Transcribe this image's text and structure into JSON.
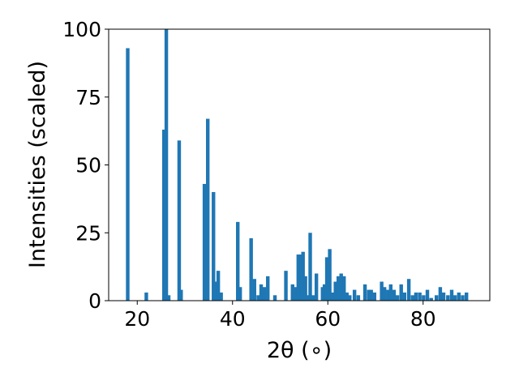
{
  "chart_data": {
    "type": "bar",
    "xlabel": "2θ (∘)",
    "ylabel": "Intensities (scaled)",
    "xlim": [
      14,
      94
    ],
    "ylim": [
      0,
      100
    ],
    "xticks": [
      20,
      40,
      60,
      80
    ],
    "yticks": [
      0,
      25,
      50,
      75,
      100
    ],
    "grid": false,
    "bar_color": "#1f77b4",
    "x": [
      18.0,
      21.9,
      25.6,
      26.1,
      26.6,
      28.8,
      29.2,
      34.1,
      34.8,
      36.0,
      36.5,
      37.0,
      37.6,
      41.1,
      41.6,
      43.9,
      44.6,
      45.4,
      46.0,
      46.7,
      47.4,
      48.9,
      51.2,
      52.6,
      53.2,
      53.8,
      54.4,
      54.8,
      55.3,
      55.8,
      56.3,
      56.9,
      57.6,
      58.9,
      59.3,
      59.8,
      60.4,
      60.9,
      61.6,
      62.2,
      62.8,
      63.4,
      64.0,
      64.6,
      65.6,
      66.4,
      67.8,
      68.6,
      69.1,
      69.8,
      71.3,
      71.9,
      72.6,
      73.2,
      73.9,
      74.6,
      75.4,
      76.1,
      77.0,
      77.8,
      78.5,
      79.3,
      80.1,
      80.9,
      81.7,
      82.8,
      83.6,
      84.3,
      85.2,
      86.0,
      86.7,
      87.5,
      88.3,
      89.1
    ],
    "values": [
      93,
      3,
      63,
      100,
      2,
      59,
      4,
      43,
      67,
      40,
      7,
      11,
      3,
      29,
      5,
      23,
      8,
      2,
      6,
      5,
      9,
      2,
      11,
      6,
      5,
      17,
      17,
      18,
      9,
      2,
      25,
      2,
      10,
      5,
      6,
      16,
      19,
      3,
      7,
      9,
      10,
      9,
      3,
      2,
      4,
      2,
      6,
      4,
      4,
      3,
      7,
      5,
      4,
      6,
      4,
      2,
      6,
      3,
      8,
      2,
      3,
      3,
      2,
      4,
      1,
      2,
      5,
      3,
      2,
      4,
      2,
      3,
      2,
      3
    ]
  }
}
